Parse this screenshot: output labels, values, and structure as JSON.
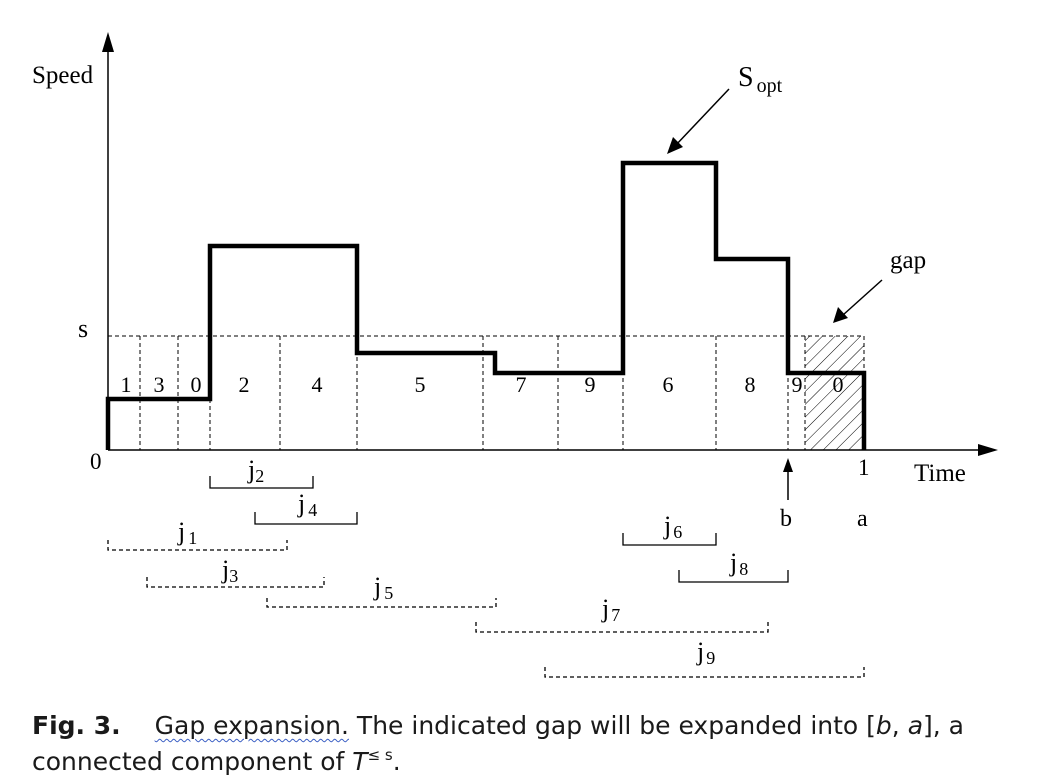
{
  "diagram": {
    "axis": {
      "y_label": "Speed",
      "x_label": "Time",
      "s_label": "s",
      "origin_label": "0",
      "one_label": "1"
    },
    "annotations": {
      "sopt_label": "S",
      "sopt_sub": "opt",
      "gap_label": "gap",
      "b_label": "b",
      "a_label": "a"
    },
    "segment_labels": [
      "1",
      "3",
      "0",
      "2",
      "4",
      "5",
      "7",
      "9",
      "6",
      "8",
      "9",
      "0"
    ],
    "jobs": [
      {
        "name": "j",
        "sub": "2",
        "style": "solid"
      },
      {
        "name": "j",
        "sub": "4",
        "style": "solid"
      },
      {
        "name": "j",
        "sub": "1",
        "style": "dashed"
      },
      {
        "name": "j",
        "sub": "3",
        "style": "dashed"
      },
      {
        "name": "j",
        "sub": "5",
        "style": "dashed"
      },
      {
        "name": "j",
        "sub": "6",
        "style": "solid"
      },
      {
        "name": "j",
        "sub": "8",
        "style": "solid"
      },
      {
        "name": "j",
        "sub": "7",
        "style": "dashed"
      },
      {
        "name": "j",
        "sub": "9",
        "style": "dashed"
      }
    ]
  },
  "caption": {
    "fig": "Fig. 3.",
    "underlined": "Gap expansion.",
    "text1": " The indicated gap will be expanded into [",
    "b": "b",
    "comma": ", ",
    "a": "a",
    "text2": "], a connected component of ",
    "T": "T",
    "sup": "≤ s",
    "end": "."
  }
}
